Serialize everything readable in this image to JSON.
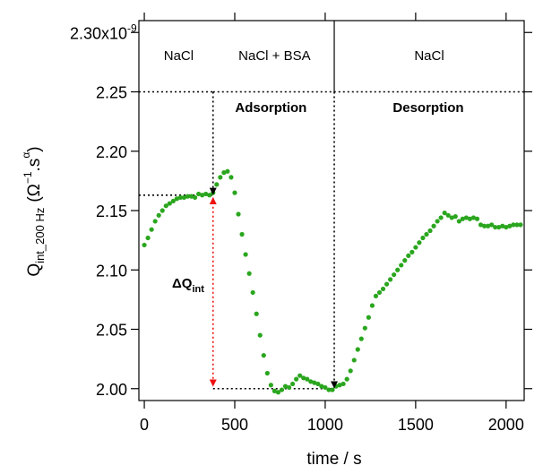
{
  "chart_data": {
    "type": "scatter",
    "x_ticks": [
      0,
      500,
      1000,
      1500,
      2000
    ],
    "x_tick_labels": [
      "0",
      "500",
      "1000",
      "1500",
      "2000"
    ],
    "y_ticks": [
      2.0,
      2.05,
      2.1,
      2.15,
      2.2,
      2.25,
      2.3
    ],
    "y_tick_labels": [
      "2.00",
      "2.05",
      "2.10",
      "2.15",
      "2.20",
      "2.25",
      "2.30x10"
    ],
    "y_exponent": "-9",
    "xlim": [
      -30,
      2100
    ],
    "ylim": [
      1.99,
      2.31
    ],
    "xlabel": "time / s",
    "ylabel": {
      "main": "Q",
      "sub": "int_200 Hz",
      "open": "(Ω",
      "sup1": "−1",
      "mid": ".s",
      "sup2": "α",
      "close": ")"
    },
    "regions": [
      {
        "label": "NaCl",
        "x": 190
      },
      {
        "label": "NaCl + BSA",
        "x": 720
      },
      {
        "label": "NaCl",
        "x": 1575
      }
    ],
    "phase_labels": [
      {
        "label": "Adsorption",
        "x": 700,
        "y": 2.233
      },
      {
        "label": "Desorption",
        "x": 1570,
        "y": 2.233
      }
    ],
    "delta_label": {
      "main": "ΔQ",
      "sub": "int"
    },
    "reference_lines": {
      "top_y": 2.25,
      "top_x_start": 380,
      "plateau_y": 2.163,
      "baseline_y": 2.0,
      "baseline_x_start": 380,
      "baseline_x_end": 1050,
      "adsorption_x": 380,
      "desorption_x": 1050
    },
    "series": [
      {
        "color": "#2aa61e",
        "x": [
          0,
          20,
          40,
          60,
          80,
          100,
          120,
          140,
          160,
          180,
          200,
          220,
          240,
          260,
          280,
          300,
          320,
          340,
          360,
          380,
          400,
          420,
          440,
          460,
          480,
          500,
          520,
          540,
          560,
          580,
          600,
          620,
          640,
          660,
          680,
          700,
          720,
          740,
          760,
          780,
          800,
          820,
          840,
          860,
          880,
          900,
          920,
          940,
          960,
          980,
          1000,
          1020,
          1040,
          1060,
          1080,
          1100,
          1120,
          1140,
          1160,
          1180,
          1200,
          1220,
          1240,
          1260,
          1280,
          1300,
          1320,
          1340,
          1360,
          1380,
          1400,
          1420,
          1440,
          1460,
          1480,
          1500,
          1520,
          1540,
          1560,
          1580,
          1600,
          1620,
          1640,
          1660,
          1680,
          1700,
          1720,
          1740,
          1760,
          1780,
          1800,
          1820,
          1840,
          1860,
          1880,
          1900,
          1920,
          1940,
          1960,
          1980,
          2000,
          2020,
          2040,
          2060,
          2080
        ],
        "y": [
          2.121,
          2.127,
          2.134,
          2.141,
          2.146,
          2.15,
          2.154,
          2.156,
          2.158,
          2.16,
          2.161,
          2.161,
          2.162,
          2.162,
          2.161,
          2.164,
          2.163,
          2.164,
          2.163,
          2.165,
          2.172,
          2.178,
          2.182,
          2.183,
          2.178,
          2.165,
          2.147,
          2.13,
          2.113,
          2.097,
          2.081,
          2.063,
          2.045,
          2.028,
          2.013,
          2.003,
          1.998,
          1.997,
          1.999,
          2.002,
          2.001,
          2.004,
          2.008,
          2.011,
          2.009,
          2.008,
          2.006,
          2.005,
          2.004,
          2.002,
          2.001,
          1.999,
          1.999,
          2.002,
          2.003,
          2.004,
          2.008,
          2.015,
          2.024,
          2.033,
          2.042,
          2.051,
          2.06,
          2.07,
          2.078,
          2.081,
          2.084,
          2.088,
          2.092,
          2.096,
          2.1,
          2.104,
          2.108,
          2.112,
          2.115,
          2.119,
          2.123,
          2.127,
          2.13,
          2.133,
          2.137,
          2.141,
          2.144,
          2.148,
          2.146,
          2.144,
          2.145,
          2.141,
          2.143,
          2.144,
          2.143,
          2.144,
          2.143,
          2.138,
          2.137,
          2.137,
          2.138,
          2.136,
          2.136,
          2.137,
          2.136,
          2.137,
          2.138,
          2.138,
          2.138
        ]
      }
    ],
    "arrow_colors": {
      "black": "#000000",
      "red": "#ee1111"
    }
  }
}
